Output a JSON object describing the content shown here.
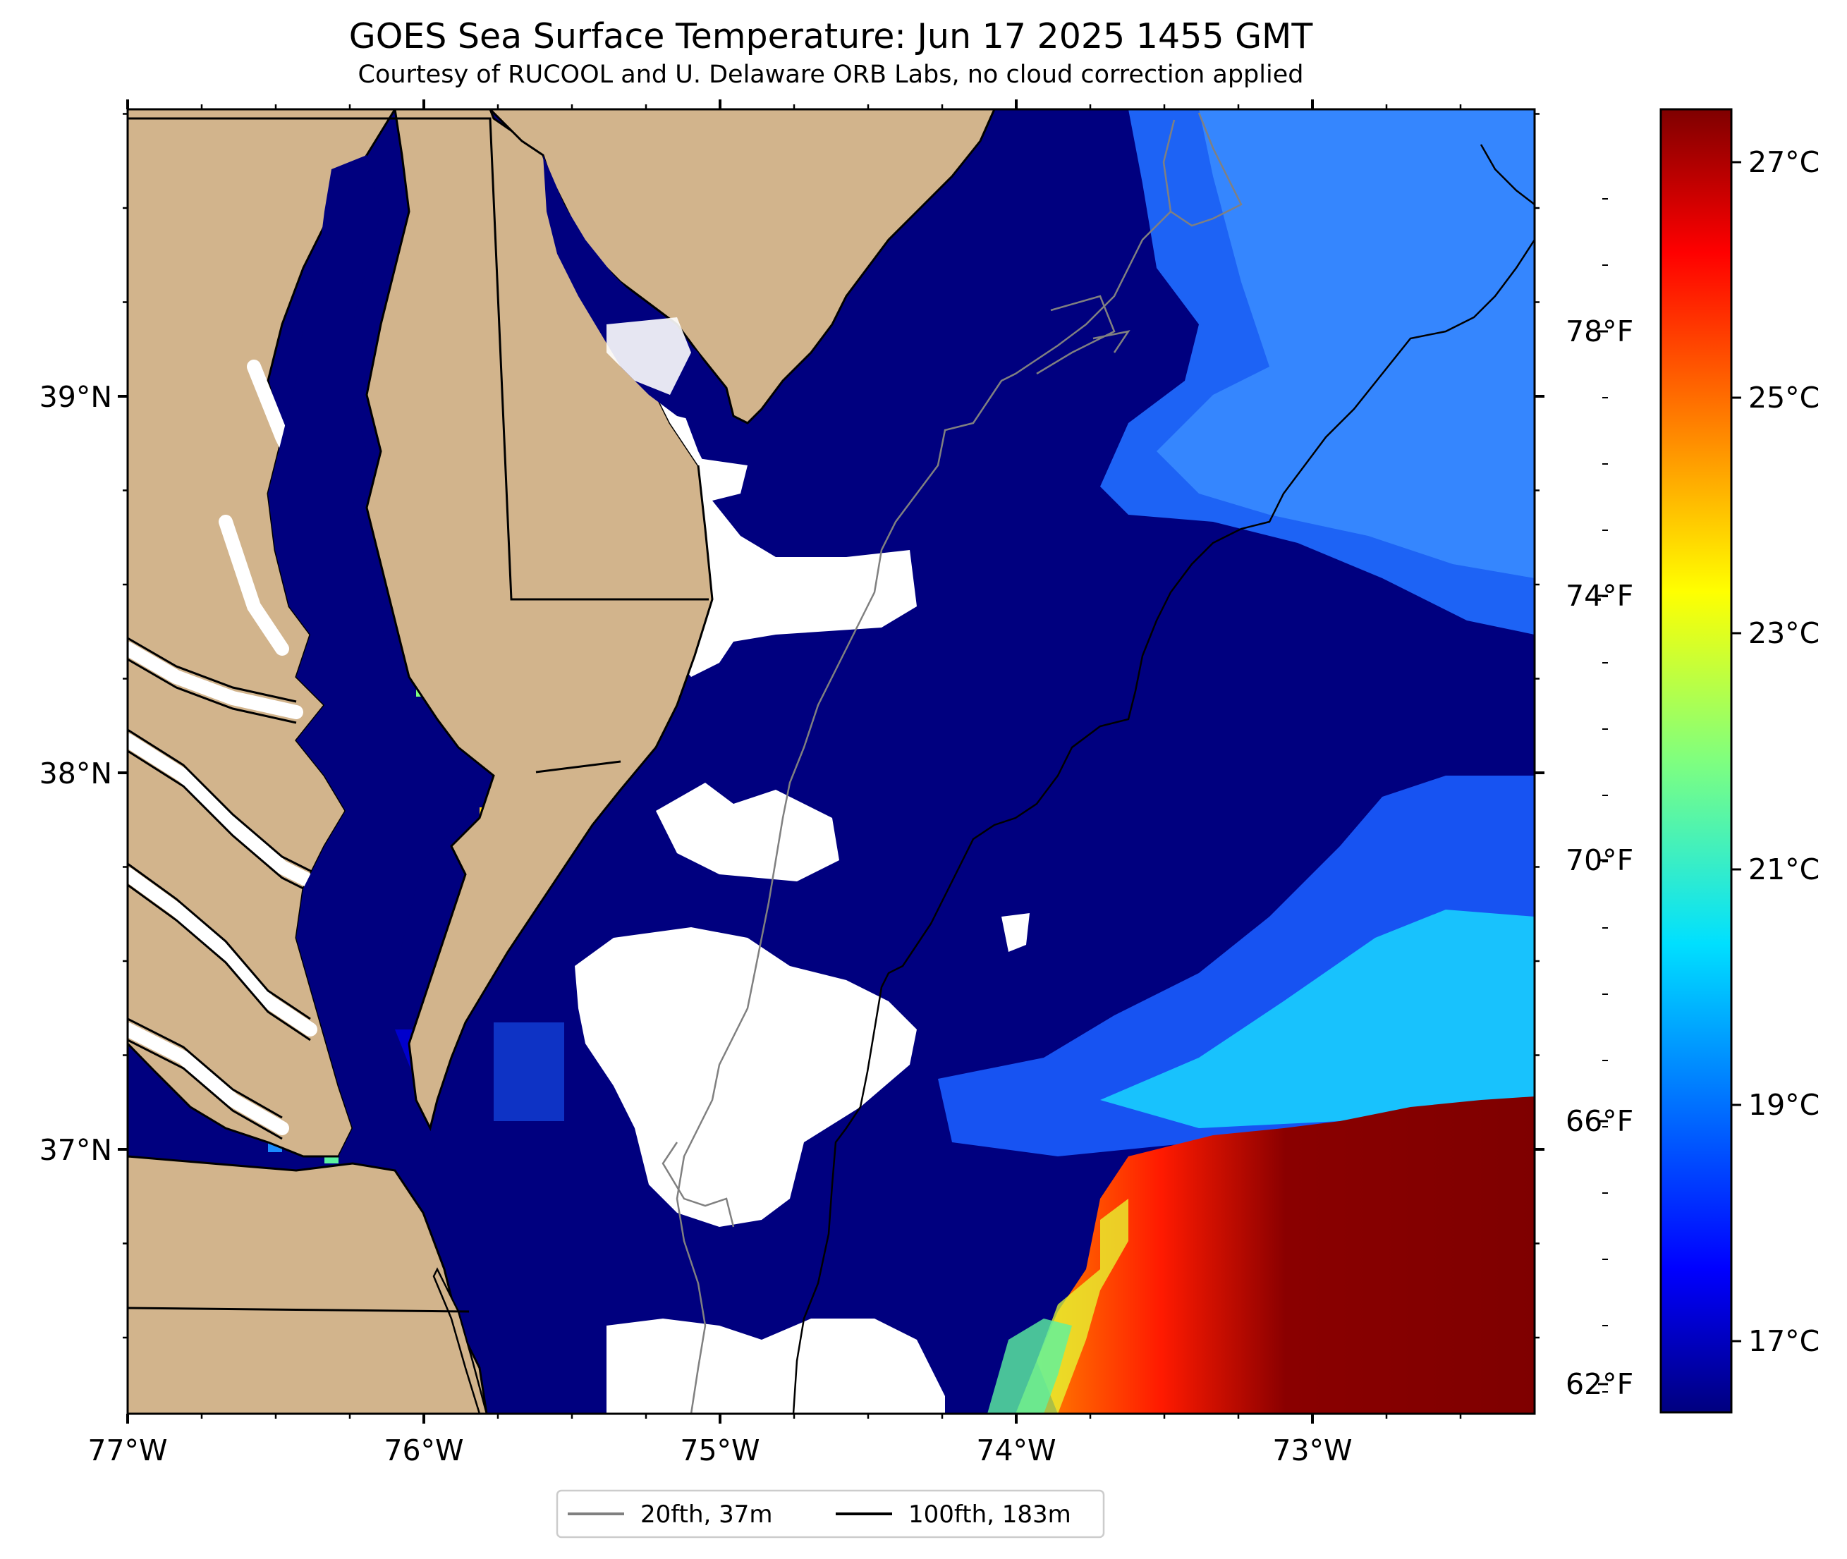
{
  "title": "GOES Sea Surface Temperature: Jun 17 2025 1455 GMT",
  "subtitle": "Courtesy of RUCOOL and U. Delaware ORB Labs, no cloud correction applied",
  "map": {
    "lon_ticks": [
      {
        "value": -77,
        "label": "77°W"
      },
      {
        "value": -76,
        "label": "76°W"
      },
      {
        "value": -75,
        "label": "75°W"
      },
      {
        "value": -74,
        "label": "74°W"
      },
      {
        "value": -73,
        "label": "73°W"
      }
    ],
    "lat_ticks": [
      {
        "value": 39,
        "label": "39°N"
      },
      {
        "value": 38,
        "label": "38°N"
      },
      {
        "value": 37,
        "label": "37°N"
      }
    ],
    "colors": {
      "land": "#d2b48c",
      "cloud_nodata": "#ffffff",
      "coastline": "#000000",
      "contour_20fth": "#808080",
      "contour_100fth": "#000000"
    }
  },
  "colorbar": {
    "celsius_ticks": [
      "27°C",
      "25°C",
      "23°C",
      "21°C",
      "19°C",
      "17°C"
    ],
    "fahrenheit_ticks": [
      "78°F",
      "74°F",
      "70°F",
      "66°F",
      "62°F"
    ],
    "colormap_stops": [
      "#00007f",
      "#0000ff",
      "#007fff",
      "#00ffff",
      "#7fff7f",
      "#ffff00",
      "#ff7f00",
      "#ff0000",
      "#7f0000"
    ]
  },
  "legend": {
    "entries": [
      {
        "label": "20fth, 37m",
        "color": "#808080"
      },
      {
        "label": "100fth, 183m",
        "color": "#000000"
      }
    ]
  }
}
